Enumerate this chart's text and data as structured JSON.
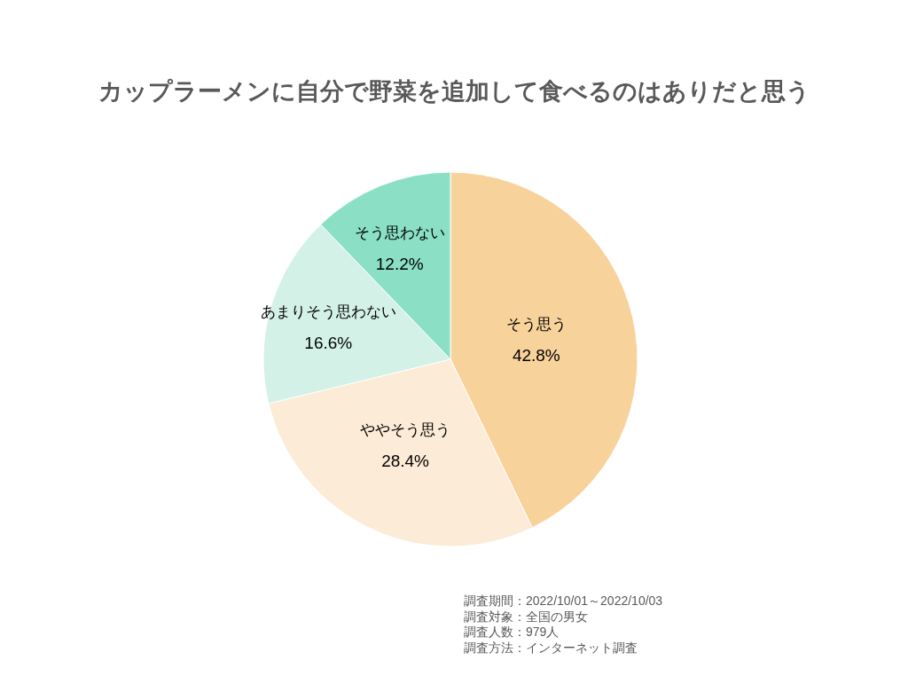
{
  "chart_data": {
    "type": "pie",
    "title": "カップラーメンに自分で野菜を追加して食べるのはありだと思う",
    "categories": [
      "そう思う",
      "ややそう思う",
      "あまりそう思わない",
      "そう思わない"
    ],
    "values": [
      42.8,
      28.4,
      16.6,
      12.2
    ],
    "colors": [
      "#f8d29b",
      "#fcebd6",
      "#d3f1e6",
      "#8adfc4"
    ],
    "value_labels": [
      "42.8%",
      "28.4%",
      "16.6%",
      "12.2%"
    ],
    "annotations": [
      "調査期間：2022/10/01～2022/10/03",
      "調査対象：全国の男女",
      "調査人数：979人",
      "調査方法：インターネット調査"
    ]
  }
}
